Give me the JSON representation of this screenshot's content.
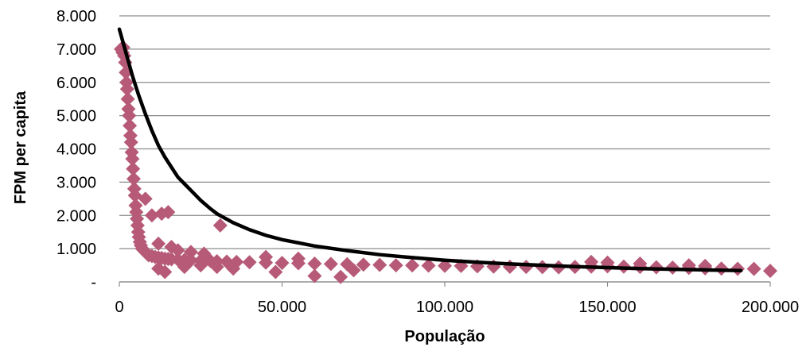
{
  "chart_data": {
    "type": "scatter",
    "title": "",
    "xlabel": "População",
    "ylabel": "FPM per capita",
    "xlim": [
      0,
      200000
    ],
    "ylim": [
      0,
      8000
    ],
    "x_ticks": [
      0,
      50000,
      100000,
      150000,
      200000
    ],
    "x_tick_labels": [
      "0",
      "50.000",
      "100.000",
      "150.000",
      "200.000"
    ],
    "y_ticks": [
      0,
      1000,
      2000,
      3000,
      4000,
      5000,
      6000,
      7000,
      8000
    ],
    "y_tick_labels": [
      "-",
      "1.000",
      "2.000",
      "3.000",
      "4.000",
      "5.000",
      "6.000",
      "7.000",
      "8.000"
    ],
    "grid": "horizontal",
    "legend": "none",
    "series": [
      {
        "kind": "scatter",
        "marker": "diamond",
        "color": "#B65A78",
        "points": [
          [
            500,
            7000
          ],
          [
            1000,
            6900
          ],
          [
            1200,
            7050
          ],
          [
            1500,
            6800
          ],
          [
            1800,
            6600
          ],
          [
            2000,
            6300
          ],
          [
            2200,
            6000
          ],
          [
            2400,
            5800
          ],
          [
            2600,
            5500
          ],
          [
            2800,
            5200
          ],
          [
            3000,
            5000
          ],
          [
            3200,
            4700
          ],
          [
            3400,
            4400
          ],
          [
            3600,
            4200
          ],
          [
            3800,
            3900
          ],
          [
            4000,
            3700
          ],
          [
            4200,
            3400
          ],
          [
            4400,
            3100
          ],
          [
            4600,
            2800
          ],
          [
            4800,
            2600
          ],
          [
            5000,
            2300
          ],
          [
            5200,
            2100
          ],
          [
            5400,
            1900
          ],
          [
            5600,
            1700
          ],
          [
            5800,
            1500
          ],
          [
            6000,
            1350
          ],
          [
            6300,
            1200
          ],
          [
            6600,
            1100
          ],
          [
            7000,
            1000
          ],
          [
            7500,
            950
          ],
          [
            8000,
            900
          ],
          [
            8500,
            850
          ],
          [
            9000,
            800
          ],
          [
            10000,
            780
          ],
          [
            11000,
            750
          ],
          [
            12000,
            730
          ],
          [
            13000,
            720
          ],
          [
            14000,
            700
          ],
          [
            15000,
            690
          ],
          [
            16000,
            680
          ],
          [
            18000,
            670
          ],
          [
            20000,
            660
          ],
          [
            22000,
            650
          ],
          [
            25000,
            640
          ],
          [
            28000,
            630
          ],
          [
            30000,
            620
          ],
          [
            33000,
            610
          ],
          [
            36000,
            600
          ],
          [
            40000,
            590
          ],
          [
            45000,
            580
          ],
          [
            50000,
            570
          ],
          [
            55000,
            560
          ],
          [
            60000,
            550
          ],
          [
            65000,
            540
          ],
          [
            70000,
            530
          ],
          [
            75000,
            520
          ],
          [
            80000,
            510
          ],
          [
            85000,
            500
          ],
          [
            90000,
            495
          ],
          [
            95000,
            490
          ],
          [
            100000,
            485
          ],
          [
            105000,
            480
          ],
          [
            110000,
            470
          ],
          [
            115000,
            460
          ],
          [
            120000,
            455
          ],
          [
            125000,
            450
          ],
          [
            130000,
            445
          ],
          [
            135000,
            440
          ],
          [
            140000,
            450
          ],
          [
            145000,
            460
          ],
          [
            150000,
            470
          ],
          [
            155000,
            460
          ],
          [
            160000,
            450
          ],
          [
            165000,
            440
          ],
          [
            170000,
            430
          ],
          [
            175000,
            420
          ],
          [
            180000,
            410
          ],
          [
            185000,
            400
          ],
          [
            190000,
            395
          ],
          [
            195000,
            390
          ],
          [
            200000,
            330
          ],
          [
            8000,
            2500
          ],
          [
            10000,
            2000
          ],
          [
            13000,
            2050
          ],
          [
            15000,
            2100
          ],
          [
            31000,
            1700
          ],
          [
            12000,
            400
          ],
          [
            14000,
            300
          ],
          [
            20000,
            450
          ],
          [
            25000,
            500
          ],
          [
            30000,
            450
          ],
          [
            35000,
            400
          ],
          [
            48000,
            300
          ],
          [
            60000,
            180
          ],
          [
            68000,
            150
          ],
          [
            72000,
            350
          ],
          [
            12000,
            1150
          ],
          [
            16000,
            1050
          ],
          [
            18000,
            950
          ],
          [
            22000,
            900
          ],
          [
            26000,
            850
          ],
          [
            45000,
            750
          ],
          [
            55000,
            700
          ],
          [
            145000,
            600
          ],
          [
            150000,
            580
          ],
          [
            160000,
            550
          ],
          [
            175000,
            500
          ],
          [
            180000,
            480
          ]
        ]
      },
      {
        "kind": "line",
        "color": "#000000",
        "points": [
          [
            0,
            7600
          ],
          [
            1000,
            7250
          ],
          [
            2000,
            6900
          ],
          [
            3000,
            6550
          ],
          [
            4000,
            6200
          ],
          [
            5000,
            5900
          ],
          [
            6000,
            5600
          ],
          [
            8000,
            5050
          ],
          [
            10000,
            4550
          ],
          [
            12000,
            4100
          ],
          [
            14000,
            3750
          ],
          [
            16000,
            3450
          ],
          [
            18000,
            3150
          ],
          [
            20000,
            2950
          ],
          [
            22000,
            2750
          ],
          [
            25000,
            2450
          ],
          [
            28000,
            2200
          ],
          [
            30000,
            2050
          ],
          [
            35000,
            1780
          ],
          [
            40000,
            1570
          ],
          [
            45000,
            1400
          ],
          [
            50000,
            1270
          ],
          [
            60000,
            1080
          ],
          [
            70000,
            940
          ],
          [
            80000,
            820
          ],
          [
            90000,
            730
          ],
          [
            100000,
            650
          ],
          [
            110000,
            590
          ],
          [
            120000,
            540
          ],
          [
            130000,
            500
          ],
          [
            140000,
            460
          ],
          [
            150000,
            430
          ],
          [
            160000,
            400
          ],
          [
            170000,
            380
          ],
          [
            180000,
            360
          ],
          [
            191000,
            340
          ]
        ]
      }
    ]
  }
}
